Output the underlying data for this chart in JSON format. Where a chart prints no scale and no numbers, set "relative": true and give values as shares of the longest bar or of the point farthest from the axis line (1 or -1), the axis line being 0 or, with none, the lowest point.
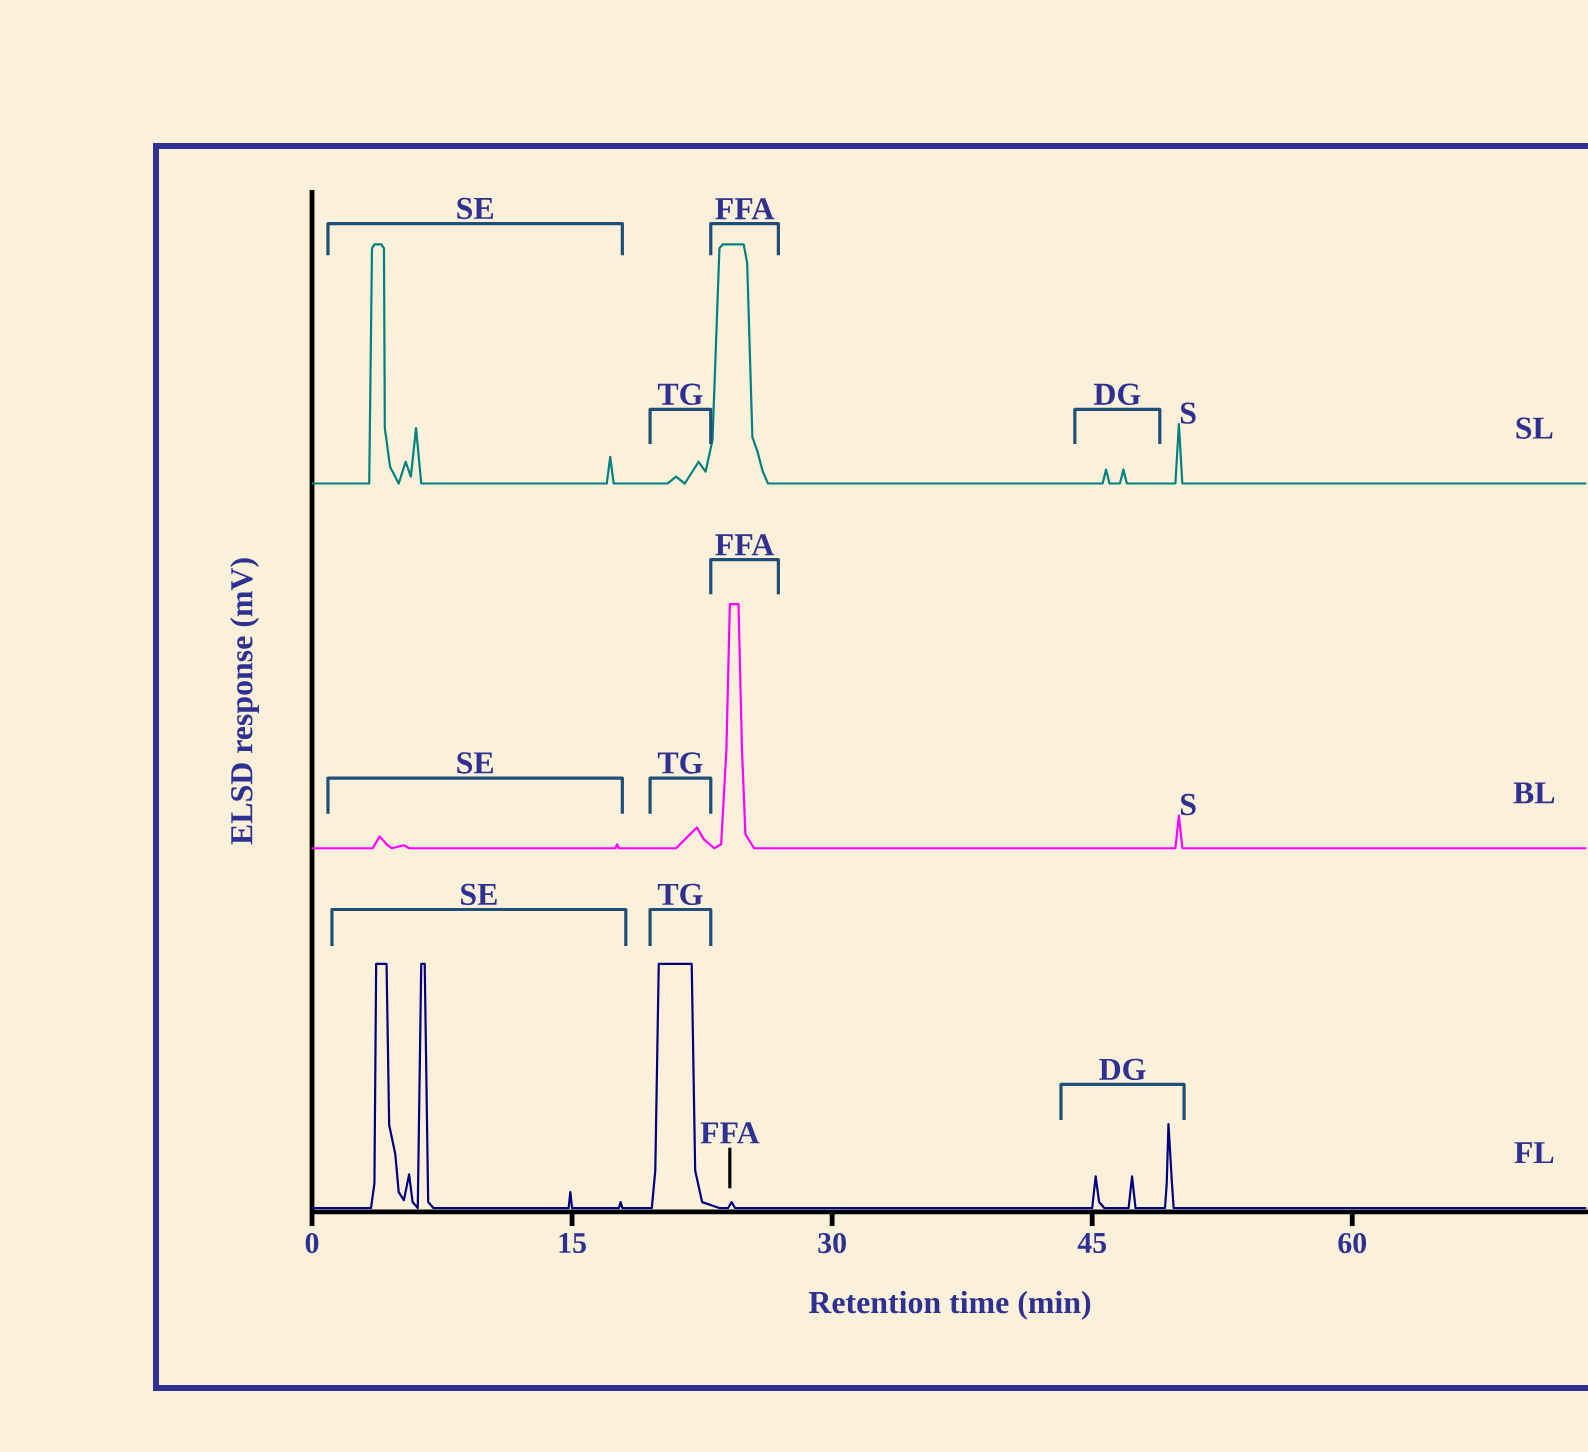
{
  "chart_data": {
    "type": "line",
    "relative": true,
    "xlabel": "Retention time (min)",
    "ylabel": "ELSD response (mV)",
    "xlim": [
      0,
      73.6
    ],
    "xticks": [
      0,
      15,
      30,
      45,
      60
    ],
    "tick_labels": "x",
    "grid": false,
    "series": [
      {
        "name": "SL",
        "color": "#008080",
        "x": [
          0,
          3.3,
          3.46,
          3.6,
          4.0,
          4.15,
          4.2,
          4.5,
          5.0,
          5.4,
          5.7,
          6.0,
          6.3,
          17.0,
          17.2,
          17.4,
          20.5,
          21.0,
          21.5,
          22.3,
          22.7,
          23.1,
          23.5,
          23.7,
          24.9,
          25.1,
          25.4,
          25.7,
          26.0,
          26.3,
          45.6,
          45.8,
          46.0,
          46.6,
          46.8,
          47.0,
          49.8,
          50.0,
          50.2,
          73.5
        ],
        "values": [
          0.737,
          0.737,
          0.975,
          0.979,
          0.979,
          0.975,
          0.793,
          0.754,
          0.737,
          0.759,
          0.744,
          0.793,
          0.737,
          0.737,
          0.764,
          0.737,
          0.737,
          0.744,
          0.737,
          0.759,
          0.749,
          0.781,
          0.975,
          0.979,
          0.979,
          0.96,
          0.784,
          0.769,
          0.749,
          0.737,
          0.737,
          0.751,
          0.737,
          0.737,
          0.751,
          0.737,
          0.737,
          0.797,
          0.737,
          0.737
        ]
      },
      {
        "name": "BL",
        "color": "#ff00ff",
        "x": [
          0,
          3.5,
          3.9,
          4.3,
          4.6,
          5.3,
          5.6,
          17.5,
          17.6,
          17.7,
          21.0,
          21.8,
          22.2,
          22.6,
          23.2,
          23.6,
          23.9,
          24.1,
          24.6,
          24.8,
          25.0,
          25.5,
          49.8,
          50.0,
          50.2,
          73.5
        ],
        "values": [
          0.368,
          0.368,
          0.38,
          0.372,
          0.368,
          0.371,
          0.368,
          0.368,
          0.372,
          0.368,
          0.368,
          0.382,
          0.389,
          0.377,
          0.368,
          0.372,
          0.467,
          0.615,
          0.615,
          0.467,
          0.382,
          0.368,
          0.368,
          0.401,
          0.368,
          0.368
        ]
      },
      {
        "name": "FL",
        "color": "#000080",
        "x": [
          0,
          3.4,
          3.6,
          3.7,
          4.3,
          4.45,
          4.8,
          5.0,
          5.3,
          5.6,
          5.8,
          6.1,
          6.3,
          6.5,
          6.7,
          7.0,
          14.8,
          14.9,
          15.0,
          17.7,
          17.8,
          17.9,
          19.6,
          19.8,
          20.0,
          21.9,
          22.1,
          22.5,
          23.5,
          24.0,
          24.2,
          24.4,
          45.0,
          45.2,
          45.4,
          45.7,
          47.1,
          47.3,
          47.5,
          49.2,
          49.3,
          49.4,
          49.6,
          49.7,
          73.5
        ],
        "values": [
          0.004,
          0.004,
          0.029,
          0.251,
          0.251,
          0.088,
          0.059,
          0.02,
          0.012,
          0.038,
          0.01,
          0.004,
          0.251,
          0.251,
          0.01,
          0.004,
          0.004,
          0.02,
          0.004,
          0.004,
          0.01,
          0.004,
          0.004,
          0.042,
          0.251,
          0.251,
          0.042,
          0.01,
          0.004,
          0.004,
          0.01,
          0.004,
          0.004,
          0.036,
          0.01,
          0.004,
          0.004,
          0.036,
          0.004,
          0.004,
          0.029,
          0.089,
          0.029,
          0.004,
          0.004
        ]
      },
      {
        "name": "SE",
        "type": "line",
        "color": "#1f4e79",
        "x": [
          0.92,
          0.92,
          17.9,
          17.9
        ],
        "values": [
          0.968,
          1.0,
          1.0,
          0.968
        ]
      },
      {
        "name": "FFA",
        "type": "line",
        "color": "#1f4e79",
        "x": [
          23.0,
          23.0,
          26.9,
          26.9
        ],
        "values": [
          0.968,
          1.0,
          1.0,
          0.968
        ]
      },
      {
        "name": "TG",
        "type": "line",
        "color": "#1f4e79",
        "x": [
          19.5,
          19.5,
          23.0,
          23.0
        ],
        "values": [
          0.777,
          0.812,
          0.812,
          0.777
        ]
      },
      {
        "name": "DG",
        "type": "line",
        "color": "#1f4e79",
        "x": [
          44.0,
          44.0,
          48.9,
          48.9
        ],
        "values": [
          0.777,
          0.812,
          0.812,
          0.777
        ]
      },
      {
        "name": "FFA",
        "type": "line",
        "color": "#1f4e79",
        "x": [
          23.0,
          23.0,
          26.9,
          26.9
        ],
        "values": [
          0.625,
          0.66,
          0.66,
          0.625
        ]
      },
      {
        "name": "SE",
        "type": "line",
        "color": "#1f4e79",
        "x": [
          0.92,
          0.92,
          17.9,
          17.9
        ],
        "values": [
          0.403,
          0.439,
          0.439,
          0.403
        ]
      },
      {
        "name": "TG",
        "type": "line",
        "color": "#1f4e79",
        "x": [
          19.5,
          19.5,
          23.0,
          23.0
        ],
        "values": [
          0.403,
          0.439,
          0.439,
          0.403
        ]
      },
      {
        "name": "SE",
        "type": "line",
        "color": "#1f4e79",
        "x": [
          1.15,
          1.15,
          18.1,
          18.1
        ],
        "values": [
          0.269,
          0.306,
          0.306,
          0.269
        ]
      },
      {
        "name": "TG",
        "type": "line",
        "color": "#1f4e79",
        "x": [
          19.5,
          19.5,
          23.0,
          23.0
        ],
        "values": [
          0.269,
          0.306,
          0.306,
          0.269
        ]
      },
      {
        "name": "DG",
        "type": "line",
        "color": "#1f4e79",
        "x": [
          43.2,
          43.2,
          50.3,
          50.3
        ],
        "values": [
          0.093,
          0.129,
          0.129,
          0.093
        ]
      },
      {
        "name": "FFA",
        "type": "line",
        "color": "#000000",
        "x": [
          24.1,
          24.1
        ],
        "values": [
          0.024,
          0.065
        ]
      }
    ],
    "annotations": [
      {
        "text": "S",
        "x": 50.0,
        "y": 0.797
      },
      {
        "text": "S",
        "x": 50.0,
        "y": 0.401
      }
    ]
  }
}
